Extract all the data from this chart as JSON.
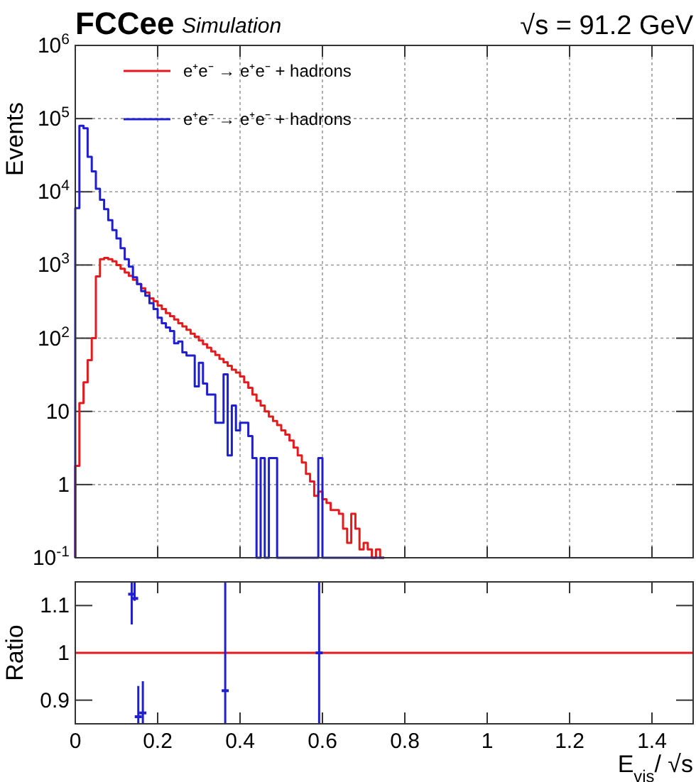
{
  "chart_data": [
    {
      "type": "histogram",
      "title": "FCCee",
      "subtitle": "Simulation",
      "ylabel": "Events",
      "annotations": [
        "√s = 91.2 GeV"
      ],
      "bins": [
        0,
        0.01,
        0.02,
        0.03,
        0.04,
        0.05,
        0.06,
        0.07,
        0.08,
        0.09,
        0.1,
        0.11,
        0.12,
        0.13,
        0.14,
        0.15,
        0.16,
        0.17,
        0.18,
        0.19,
        0.2,
        0.21,
        0.22,
        0.23,
        0.24,
        0.25,
        0.26,
        0.27,
        0.28,
        0.29,
        0.3,
        0.31,
        0.32,
        0.33,
        0.34,
        0.35,
        0.36,
        0.37,
        0.38,
        0.39,
        0.4,
        0.41,
        0.42,
        0.43,
        0.44,
        0.45,
        0.46,
        0.47,
        0.48,
        0.49,
        0.5,
        0.51,
        0.52,
        0.53,
        0.54,
        0.55,
        0.56,
        0.57,
        0.58,
        0.59,
        0.6,
        0.61,
        0.62,
        0.63,
        0.64,
        0.65,
        0.66,
        0.67,
        0.68,
        0.69,
        0.7,
        0.71,
        0.72,
        0.73,
        0.74,
        0.75
      ],
      "series": [
        {
          "name": "e⁺e⁻ → e⁺e⁻ + hadrons",
          "color": "#e41a1c",
          "values": [
            1.8,
            13,
            25,
            50,
            100,
            700,
            1200,
            1250,
            1200,
            1120,
            1000,
            890,
            790,
            710,
            630,
            550,
            480,
            420,
            350,
            320,
            280,
            250,
            220,
            200,
            180,
            160,
            145,
            130,
            115,
            105,
            93,
            83,
            74,
            66,
            59,
            52,
            47,
            42,
            37,
            34,
            30,
            25,
            21,
            17,
            14,
            12,
            10,
            8.5,
            7.4,
            6.5,
            5.5,
            4.8,
            4,
            3.2,
            2.5,
            2,
            1.4,
            1.1,
            0.7,
            0.8,
            0.63,
            0.56,
            0.45,
            0.45,
            0.4,
            0.25,
            0.16,
            0.4,
            0.25,
            0.13,
            0.16,
            0.13,
            null,
            0.13,
            null
          ]
        },
        {
          "name": "e⁺e⁻ → e⁺e⁻ + hadrons",
          "color": "#1f1fd0",
          "values": [
            6000,
            80000,
            74000,
            30000,
            19000,
            11000,
            7800,
            5800,
            4100,
            3000,
            2300,
            1700,
            1200,
            950,
            680,
            550,
            440,
            380,
            300,
            250,
            190,
            160,
            140,
            125,
            85,
            90,
            64,
            58,
            58,
            22,
            46,
            24,
            17,
            17,
            7,
            7,
            32,
            2.5,
            12,
            5.5,
            7,
            7,
            4.6,
            2.3,
            null,
            2.3,
            null,
            2.3,
            2.3,
            null,
            null,
            null,
            null,
            null,
            null,
            null,
            null,
            null,
            null,
            2.3,
            null,
            null,
            null,
            null,
            null,
            null,
            null,
            null,
            null,
            null,
            null,
            null,
            null,
            null,
            null
          ]
        }
      ],
      "log": "y",
      "xlim": [
        0,
        1.5
      ],
      "xticks": [
        0,
        0.2,
        0.4,
        0.6,
        0.8,
        1,
        1.2,
        1.4
      ],
      "ylim": [
        0.1,
        1000000
      ],
      "yticks": [
        {
          "value": 0.1,
          "label": "10$^{-1}$"
        },
        1,
        10,
        {
          "value": 100,
          "label": "10$^{2}$"
        },
        {
          "value": 1000,
          "label": "10$^{3}$"
        },
        {
          "value": 10000,
          "label": "10$^{4}$"
        },
        {
          "value": 100000,
          "label": "10$^{5}$"
        },
        {
          "value": 1000000,
          "label": "10$^{6}$"
        }
      ],
      "tick_labels": "y",
      "grid": true,
      "legend": "top left"
    },
    {
      "type": "scatter",
      "xlabel": "E$_{vis}$/ √s",
      "ylabel": "Ratio",
      "xlim": [
        0,
        1.5
      ],
      "xticks": [
        0,
        0.2,
        0.4,
        0.6,
        0.8,
        1,
        1.2,
        1.4
      ],
      "ylim": [
        0.85,
        1.15
      ],
      "yticks": [
        0.9,
        1,
        1.1
      ],
      "ref_lines": [
        {
          "axis": "y",
          "value": 1,
          "color": "#e41a1c"
        }
      ],
      "series": [
        {
          "color": "#1f1fd0",
          "x": [
            0.137,
            0.144,
            0.153,
            0.164,
            0.364,
            0.592
          ],
          "values": [
            1.124,
            1.115,
            0.865,
            0.873,
            0.92,
            1
          ],
          "errors": [
            [
              1.06,
              1.15
            ],
            [
              1.11,
              1.15
            ],
            [
              0.85,
              0.93
            ],
            [
              0.85,
              0.94
            ],
            [
              0.85,
              1.15
            ],
            [
              0.85,
              1.15
            ]
          ]
        }
      ]
    }
  ]
}
